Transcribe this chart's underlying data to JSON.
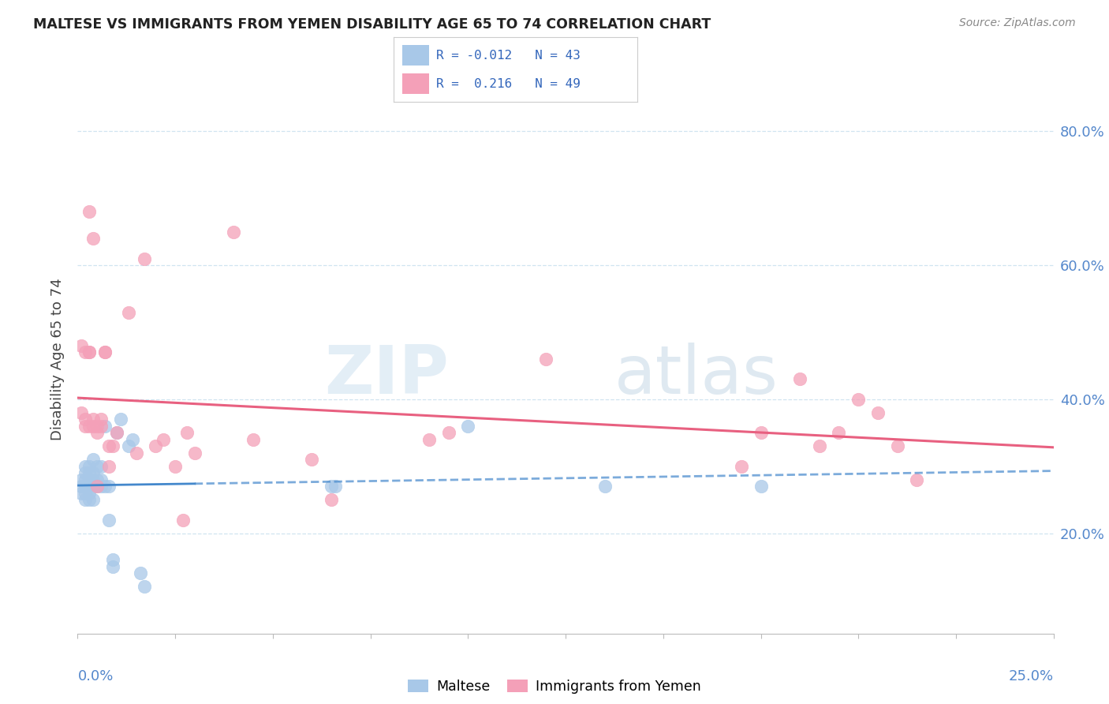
{
  "title": "MALTESE VS IMMIGRANTS FROM YEMEN DISABILITY AGE 65 TO 74 CORRELATION CHART",
  "source": "Source: ZipAtlas.com",
  "ylabel": "Disability Age 65 to 74",
  "x_range": [
    0.0,
    0.25
  ],
  "y_range": [
    0.05,
    0.87
  ],
  "y_ticks": [
    0.2,
    0.4,
    0.6,
    0.8
  ],
  "y_tick_labels": [
    "20.0%",
    "40.0%",
    "60.0%",
    "80.0%"
  ],
  "x_ticks": [
    0.0,
    0.025,
    0.05,
    0.075,
    0.1,
    0.125,
    0.15,
    0.175,
    0.2,
    0.225,
    0.25
  ],
  "color_blue": "#a8c8e8",
  "color_pink": "#f4a0b8",
  "line_color_blue": "#4488cc",
  "line_color_pink": "#e86080",
  "legend_text_color": "#3366bb",
  "axis_label_color": "#5588cc",
  "title_color": "#222222",
  "source_color": "#888888",
  "grid_color": "#d0e4f0",
  "blue_scatter_x": [
    0.001,
    0.001,
    0.001,
    0.002,
    0.002,
    0.002,
    0.002,
    0.002,
    0.002,
    0.003,
    0.003,
    0.003,
    0.003,
    0.003,
    0.003,
    0.004,
    0.004,
    0.004,
    0.004,
    0.004,
    0.005,
    0.005,
    0.005,
    0.006,
    0.006,
    0.006,
    0.007,
    0.007,
    0.008,
    0.008,
    0.009,
    0.009,
    0.01,
    0.011,
    0.013,
    0.014,
    0.016,
    0.017,
    0.065,
    0.066,
    0.1,
    0.135,
    0.175
  ],
  "blue_scatter_y": [
    0.26,
    0.27,
    0.28,
    0.25,
    0.26,
    0.27,
    0.28,
    0.29,
    0.3,
    0.25,
    0.26,
    0.27,
    0.28,
    0.29,
    0.3,
    0.25,
    0.27,
    0.28,
    0.29,
    0.31,
    0.27,
    0.28,
    0.3,
    0.27,
    0.28,
    0.3,
    0.27,
    0.36,
    0.22,
    0.27,
    0.15,
    0.16,
    0.35,
    0.37,
    0.33,
    0.34,
    0.14,
    0.12,
    0.27,
    0.27,
    0.36,
    0.27,
    0.27
  ],
  "pink_scatter_x": [
    0.001,
    0.001,
    0.002,
    0.002,
    0.002,
    0.003,
    0.003,
    0.003,
    0.003,
    0.004,
    0.004,
    0.004,
    0.005,
    0.005,
    0.005,
    0.006,
    0.006,
    0.007,
    0.007,
    0.008,
    0.008,
    0.009,
    0.01,
    0.013,
    0.015,
    0.017,
    0.02,
    0.022,
    0.025,
    0.027,
    0.028,
    0.03,
    0.04,
    0.045,
    0.06,
    0.065,
    0.09,
    0.095,
    0.12,
    0.17,
    0.175,
    0.185,
    0.19,
    0.195,
    0.2,
    0.205,
    0.21,
    0.215
  ],
  "pink_scatter_y": [
    0.48,
    0.38,
    0.36,
    0.37,
    0.47,
    0.47,
    0.47,
    0.36,
    0.68,
    0.36,
    0.37,
    0.64,
    0.27,
    0.35,
    0.36,
    0.36,
    0.37,
    0.47,
    0.47,
    0.3,
    0.33,
    0.33,
    0.35,
    0.53,
    0.32,
    0.61,
    0.33,
    0.34,
    0.3,
    0.22,
    0.35,
    0.32,
    0.65,
    0.34,
    0.31,
    0.25,
    0.34,
    0.35,
    0.46,
    0.3,
    0.35,
    0.43,
    0.33,
    0.35,
    0.4,
    0.38,
    0.33,
    0.28
  ]
}
